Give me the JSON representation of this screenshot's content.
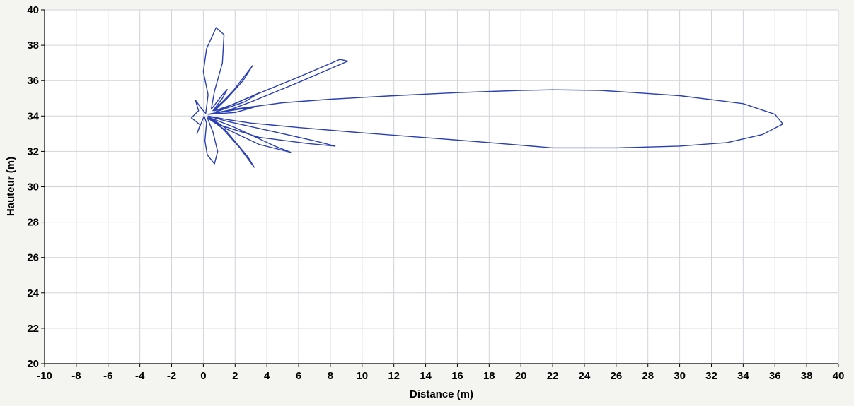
{
  "chart_data": {
    "type": "line",
    "title": "",
    "xlabel": "Distance (m)",
    "ylabel": "Hauteur (m)",
    "xlim": [
      -10,
      40
    ],
    "ylim": [
      20,
      40
    ],
    "xticks": [
      -10,
      -8,
      -6,
      -4,
      -2,
      0,
      2,
      4,
      6,
      8,
      10,
      12,
      14,
      16,
      18,
      20,
      22,
      24,
      26,
      28,
      30,
      32,
      34,
      36,
      38,
      40
    ],
    "yticks": [
      20,
      22,
      24,
      26,
      28,
      30,
      32,
      34,
      36,
      38,
      40
    ],
    "grid": true,
    "legend": "none",
    "colors": {
      "series": "#2a3fb0",
      "grid": "#d2d3d8",
      "axis": "#000000",
      "background": "#ffffff"
    },
    "series": [
      {
        "points": [
          [
            0.3,
            34.1
          ],
          [
            2.0,
            34.4
          ],
          [
            5.0,
            34.75
          ],
          [
            8.0,
            34.95
          ],
          [
            12.0,
            35.15
          ],
          [
            16.0,
            35.32
          ],
          [
            20.0,
            35.45
          ],
          [
            22.0,
            35.48
          ],
          [
            25.0,
            35.45
          ],
          [
            30.0,
            35.15
          ],
          [
            34.0,
            34.7
          ],
          [
            36.0,
            34.1
          ],
          [
            36.5,
            33.55
          ],
          [
            35.2,
            32.95
          ],
          [
            33.0,
            32.5
          ],
          [
            30.0,
            32.3
          ],
          [
            26.0,
            32.2
          ],
          [
            22.0,
            32.2
          ],
          [
            18.0,
            32.5
          ],
          [
            14.0,
            32.78
          ],
          [
            10.0,
            33.05
          ],
          [
            6.0,
            33.35
          ],
          [
            3.0,
            33.6
          ],
          [
            1.5,
            33.8
          ],
          [
            0.3,
            34.0
          ],
          [
            1.0,
            33.5
          ],
          [
            3.5,
            32.8
          ],
          [
            6.5,
            32.45
          ],
          [
            8.3,
            32.3
          ],
          [
            7.0,
            32.6
          ],
          [
            4.0,
            33.2
          ],
          [
            1.5,
            33.7
          ],
          [
            0.3,
            34.0
          ],
          [
            1.5,
            33.25
          ],
          [
            3.5,
            32.4
          ],
          [
            5.5,
            31.95
          ],
          [
            4.5,
            32.3
          ],
          [
            2.0,
            33.35
          ],
          [
            0.3,
            33.95
          ],
          [
            1.2,
            33.3
          ],
          [
            2.3,
            32.2
          ],
          [
            3.2,
            31.1
          ],
          [
            2.8,
            31.7
          ],
          [
            1.4,
            33.2
          ],
          [
            0.25,
            33.9
          ],
          [
            0.6,
            33.1
          ],
          [
            0.9,
            32.0
          ],
          [
            0.7,
            31.3
          ],
          [
            0.25,
            31.8
          ],
          [
            0.1,
            32.6
          ],
          [
            0.2,
            33.6
          ],
          [
            0.05,
            34.0
          ],
          [
            -0.4,
            33.0
          ],
          [
            -0.2,
            33.5
          ],
          [
            -0.75,
            33.9
          ],
          [
            -0.3,
            34.3
          ],
          [
            -0.5,
            34.9
          ],
          [
            -0.1,
            34.4
          ],
          [
            0.15,
            34.15
          ],
          [
            0.3,
            35.2
          ],
          [
            0.0,
            36.5
          ],
          [
            0.2,
            37.8
          ],
          [
            0.8,
            39.0
          ],
          [
            1.3,
            38.6
          ],
          [
            1.2,
            37.0
          ],
          [
            0.7,
            35.4
          ],
          [
            0.5,
            34.4
          ],
          [
            0.6,
            34.5
          ],
          [
            1.2,
            35.2
          ],
          [
            1.5,
            35.5
          ],
          [
            1.2,
            35.0
          ],
          [
            0.6,
            34.3
          ],
          [
            1.2,
            34.8
          ],
          [
            1.9,
            35.45
          ],
          [
            3.1,
            36.85
          ],
          [
            2.5,
            36.0
          ],
          [
            1.5,
            35.0
          ],
          [
            0.7,
            34.3
          ],
          [
            2.0,
            34.7
          ],
          [
            3.5,
            35.3
          ],
          [
            2.6,
            34.8
          ],
          [
            1.0,
            34.3
          ],
          [
            0.8,
            34.25
          ],
          [
            3.0,
            35.1
          ],
          [
            6.0,
            36.2
          ],
          [
            8.6,
            37.2
          ],
          [
            9.1,
            37.1
          ],
          [
            6.0,
            35.9
          ],
          [
            3.0,
            34.8
          ],
          [
            1.5,
            34.3
          ],
          [
            0.7,
            34.15
          ],
          [
            2.0,
            34.35
          ],
          [
            3.2,
            34.5
          ],
          [
            2.0,
            34.2
          ],
          [
            0.3,
            34.1
          ]
        ]
      }
    ]
  }
}
